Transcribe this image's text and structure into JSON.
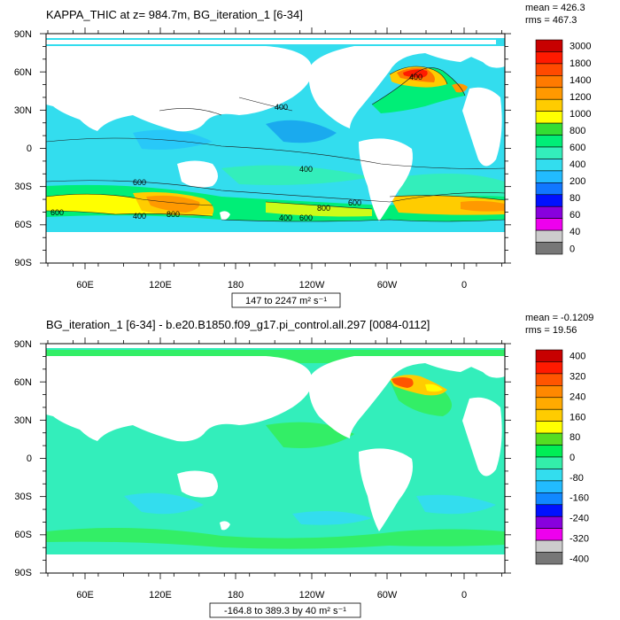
{
  "colors": {
    "land": "#ffffff",
    "frame": "#000000",
    "contour": "#1a1a1a"
  },
  "panels": [
    {
      "id": "top",
      "title": "KAPPA_THIC at z= 984.7m, BG_iteration_1 [6-34]",
      "mean_label": "mean = 426.3",
      "rms_label": "rms = 467.3",
      "range_label": "147 to 2247 m² s⁻¹",
      "lat_ticks": [
        "90N",
        "60N",
        "30N",
        "0",
        "30S",
        "60S",
        "90S"
      ],
      "lon_ticks": [
        "60E",
        "120E",
        "180",
        "120W",
        "60W",
        "0"
      ],
      "colorbar_labels": [
        "3000",
        "1800",
        "1400",
        "1200",
        "1000",
        "800",
        "600",
        "400",
        "200",
        "80",
        "60",
        "40",
        "0"
      ],
      "colorbar_colors": [
        "#c80000",
        "#ff1a00",
        "#ff4a00",
        "#ff7a00",
        "#ff9900",
        "#ffcc00",
        "#ffff00",
        "#33dd33",
        "#00ee77",
        "#33eebb",
        "#33ddee",
        "#22bbff",
        "#1177ff",
        "#0011ff",
        "#8800dd",
        "#ee00ee",
        "#cccccc",
        "#777777"
      ],
      "contour_labels": [
        "400",
        "600",
        "400",
        "800",
        "600",
        "600",
        "400",
        "600",
        "400",
        "800",
        "400"
      ]
    },
    {
      "id": "bottom",
      "title": "BG_iteration_1 [6-34] - b.e20.B1850.f09_g17.pi_control.all.297 [0084-0112]",
      "mean_label": "mean = -0.1209",
      "rms_label": "rms = 19.56",
      "range_label": "-164.8 to 389.3 by 40 m² s⁻¹",
      "lat_ticks": [
        "90N",
        "60N",
        "30N",
        "0",
        "30S",
        "60S",
        "90S"
      ],
      "lon_ticks": [
        "60E",
        "120E",
        "180",
        "120W",
        "60W",
        "0"
      ],
      "colorbar_labels": [
        "400",
        "320",
        "240",
        "160",
        "80",
        "0",
        "-80",
        "-160",
        "-240",
        "-320",
        "-400"
      ],
      "colorbar_colors": [
        "#c80000",
        "#ff1a00",
        "#ff5500",
        "#ff8800",
        "#ffaa00",
        "#ffcc00",
        "#ffff00",
        "#55dd22",
        "#00ee55",
        "#33eeaa",
        "#33ddee",
        "#22bbff",
        "#1188ff",
        "#0011ff",
        "#8800dd",
        "#ee00ee",
        "#cccccc",
        "#777777"
      ]
    }
  ]
}
